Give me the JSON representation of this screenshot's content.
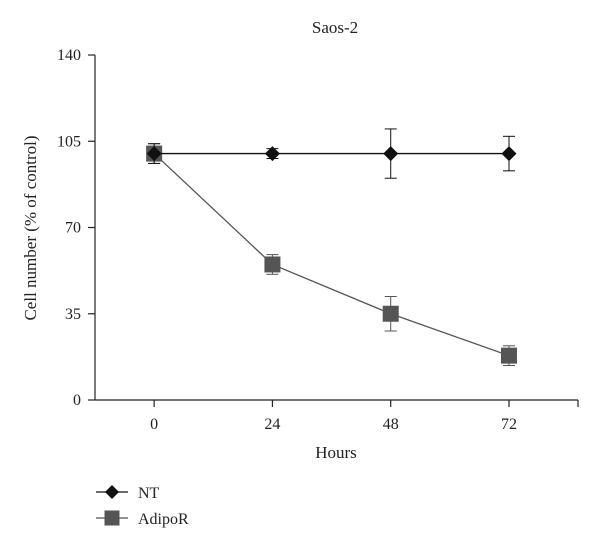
{
  "chart_data": {
    "type": "line",
    "title": "Saos-2",
    "xlabel": "Hours",
    "ylabel": "Cell number (% of control)",
    "x": [
      0,
      24,
      48,
      72
    ],
    "x_tick_labels": [
      "0",
      "24",
      "48",
      "72"
    ],
    "y_ticks": [
      0,
      35,
      70,
      105,
      140
    ],
    "y_tick_labels": [
      "0",
      "35",
      "70",
      "105",
      "140"
    ],
    "xlim": [
      -12,
      86
    ],
    "ylim": [
      0,
      140
    ],
    "grid": false,
    "legend_position": "bottom-left",
    "series": [
      {
        "name": "NT",
        "marker": "diamond",
        "color": "#111111",
        "values": [
          100,
          100,
          100,
          100
        ],
        "error": [
          4,
          2,
          10,
          7
        ]
      },
      {
        "name": "AdipoR",
        "marker": "square",
        "color": "#555555",
        "values": [
          100,
          55,
          35,
          18
        ],
        "error": [
          4,
          4,
          7,
          4
        ]
      }
    ]
  }
}
